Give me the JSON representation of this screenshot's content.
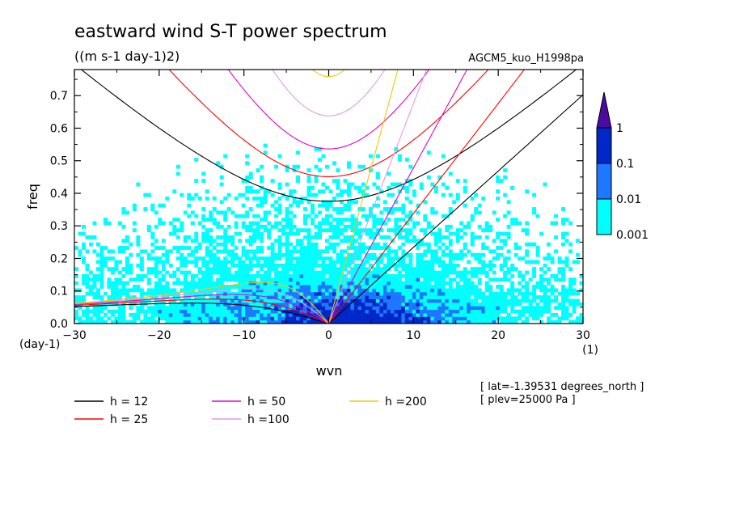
{
  "title": "eastward wind S-T power spectrum",
  "subtitle": "((m s-1 day-1)2)",
  "model_label": "AGCM5_kuo_H1998pa",
  "info": [
    "[ lat=-1.39531 degrees_north ]",
    "[ plev=25000 Pa ]"
  ],
  "chart_data": {
    "type": "heatmap",
    "xlabel": "wvn",
    "ylabel": "freq",
    "x_unit": "(1)",
    "y_unit": "(day-1)",
    "xlim": [
      -30,
      30
    ],
    "ylim": [
      0,
      0.78
    ],
    "xticks": [
      -30,
      -20,
      -10,
      0,
      10,
      20,
      30
    ],
    "yticks": [
      0.0,
      0.1,
      0.2,
      0.3,
      0.4,
      0.5,
      0.6,
      0.7
    ],
    "ytick_labels": [
      "0.0",
      "0.1",
      "0.2",
      "0.3",
      "0.4",
      "0.5",
      "0.6",
      "0.7"
    ],
    "colorbar": {
      "levels": [
        0.001,
        0.01,
        0.1,
        1
      ],
      "labels": [
        "0.001",
        "0.01",
        "0.1",
        "1"
      ],
      "colors": [
        "#00ffff",
        "#1e78ff",
        "#0028c8",
        "#4b0aa0"
      ]
    },
    "dispersion_curves": [
      {
        "label": "h = 12",
        "h": 12,
        "color": "#000000"
      },
      {
        "label": "h = 25",
        "h": 25,
        "color": "#ff0000"
      },
      {
        "label": "h = 50",
        "h": 50,
        "color": "#e600c8"
      },
      {
        "label": "h =100",
        "h": 100,
        "color": "#e19be1"
      },
      {
        "label": "h =200",
        "h": 200,
        "color": "#f0c800"
      }
    ]
  }
}
